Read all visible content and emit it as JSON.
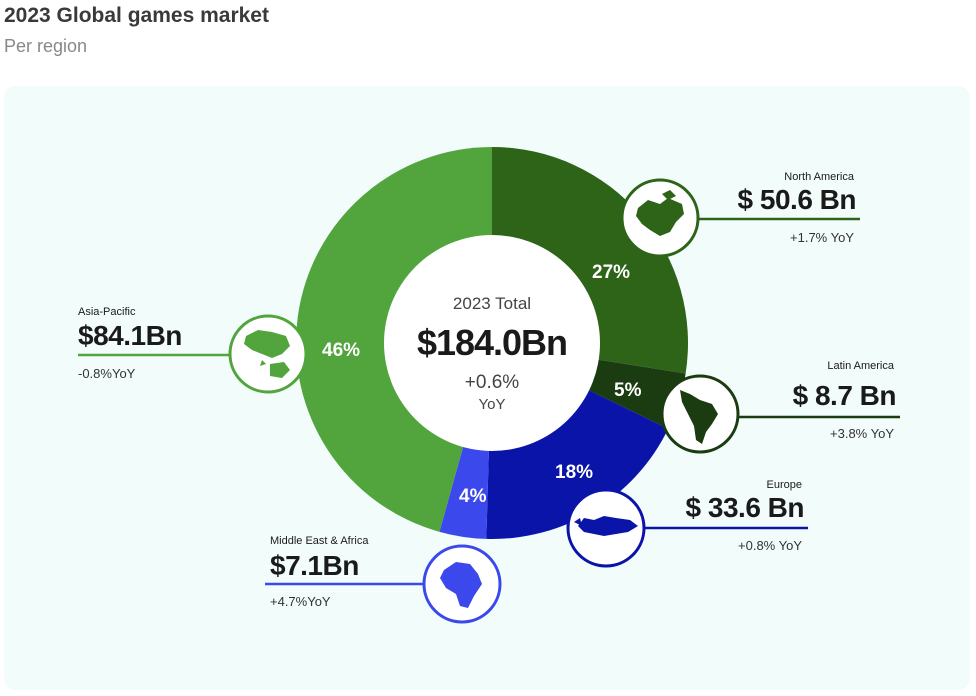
{
  "header": {
    "title": "2023 Global games market",
    "subtitle": "Per region"
  },
  "colors": {
    "panel_bg": "#f1fcfb",
    "north_america": "#2e6418",
    "latin_america": "#1b3c10",
    "europe": "#0a14a8",
    "middle_east_africa": "#3b48ec",
    "asia_pacific": "#52a43d"
  },
  "center": {
    "label": "2023 Total",
    "value": "$184.0Bn",
    "yoy": "+0.6%",
    "yoy_unit": "YoY"
  },
  "chart_data": {
    "type": "pie",
    "categories": [
      "North America",
      "Latin America",
      "Europe",
      "Middle East & Africa",
      "Asia-Pacific"
    ],
    "values": [
      50.6,
      8.7,
      33.6,
      7.1,
      84.1
    ],
    "percentages": [
      27,
      5,
      18,
      4,
      46
    ],
    "unit": "Bn",
    "total": 184.0
  },
  "regions": {
    "north_america": {
      "name": "North America",
      "value": "$ 50.6 Bn",
      "yoy": "+1.7% YoY",
      "pct": "27%"
    },
    "latin_america": {
      "name": "Latin America",
      "value": "$ 8.7 Bn",
      "yoy": "+3.8% YoY",
      "pct": "5%"
    },
    "europe": {
      "name": "Europe",
      "value": "$ 33.6 Bn",
      "yoy": "+0.8% YoY",
      "pct": "18%"
    },
    "middle_east_africa": {
      "name": "Middle East & Africa",
      "value": "$7.1Bn",
      "yoy": "+4.7%YoY",
      "pct": "4%"
    },
    "asia_pacific": {
      "name": "Asia-Pacific",
      "value": "$84.1Bn",
      "yoy": "-0.8%YoY",
      "pct": "46%"
    }
  },
  "icons": [
    "north-america-map-icon",
    "latin-america-map-icon",
    "europe-map-icon",
    "africa-map-icon",
    "asia-pacific-map-icon"
  ]
}
